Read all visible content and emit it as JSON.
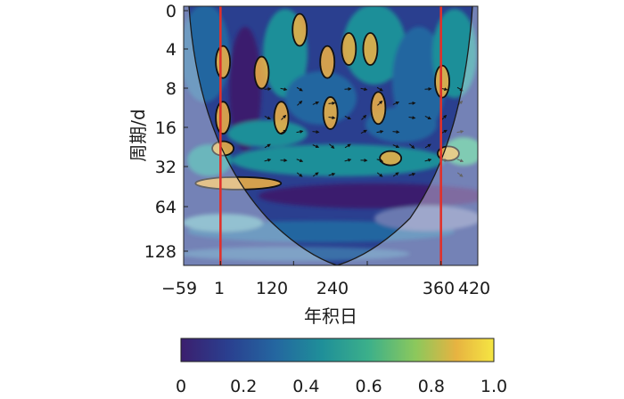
{
  "chart_data": {
    "type": "heatmap",
    "title": "",
    "xlabel": "年积日",
    "ylabel": "周期/d",
    "x_ticks": [
      "−59",
      "1",
      "120",
      "240",
      "360",
      "420"
    ],
    "x_tick_values": [
      -59,
      1,
      120,
      240,
      360,
      420
    ],
    "y_ticks": [
      "0",
      "4",
      "8",
      "16",
      "32",
      "64",
      "128"
    ],
    "y_tick_values": [
      0,
      4,
      8,
      16,
      32,
      64,
      128
    ],
    "xlim": [
      -59,
      420
    ],
    "y_scale": "log2",
    "y_reversed": true,
    "reference_lines_x": [
      1,
      360
    ],
    "reference_line_color": "#e0312b",
    "colorbar": {
      "range": [
        0,
        1
      ],
      "ticks": [
        "0",
        "0.2",
        "0.4",
        "0.6",
        "0.8",
        "1.0"
      ],
      "tick_values": [
        0,
        0.2,
        0.4,
        0.6,
        0.8,
        1.0
      ],
      "colors": [
        "#3b1f6e",
        "#2a3f8f",
        "#2466a0",
        "#1f8f99",
        "#3cb08a",
        "#8cc85c",
        "#e7b341",
        "#f5e642"
      ]
    },
    "significant_regions": [
      {
        "x": 5,
        "period": 5,
        "coherence": 0.85
      },
      {
        "x": 5,
        "period": 13,
        "coherence": 0.8
      },
      {
        "x": 5,
        "period": 22,
        "coherence": 0.75
      },
      {
        "x": 30,
        "period": 40,
        "coherence": 0.85
      },
      {
        "x": 68,
        "period": 6,
        "coherence": 0.8
      },
      {
        "x": 100,
        "period": 13,
        "coherence": 0.85
      },
      {
        "x": 130,
        "period": 2,
        "coherence": 0.8
      },
      {
        "x": 175,
        "period": 5,
        "coherence": 0.8
      },
      {
        "x": 180,
        "period": 12,
        "coherence": 0.8
      },
      {
        "x": 210,
        "period": 4,
        "coherence": 0.8
      },
      {
        "x": 245,
        "period": 4,
        "coherence": 0.8
      },
      {
        "x": 258,
        "period": 11,
        "coherence": 0.85
      },
      {
        "x": 278,
        "period": 26,
        "coherence": 0.75
      },
      {
        "x": 362,
        "period": 7,
        "coherence": 0.85
      },
      {
        "x": 372,
        "period": 24,
        "coherence": 0.75
      }
    ],
    "grid": false
  }
}
